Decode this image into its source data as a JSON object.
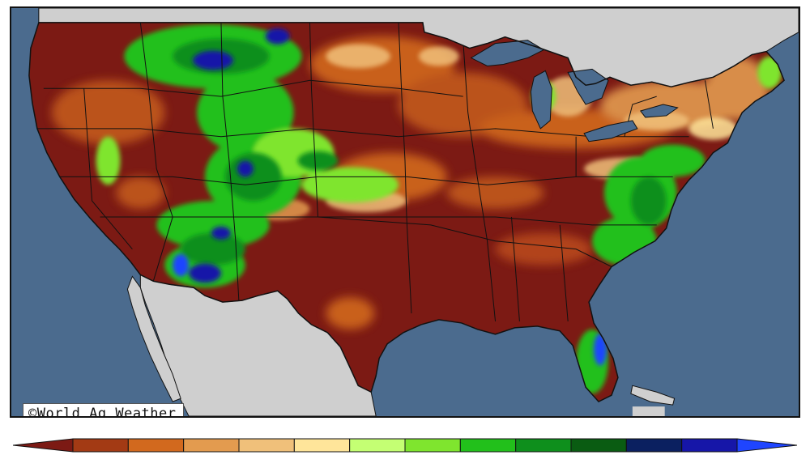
{
  "map": {
    "credit": "©World Ag Weather",
    "colors": {
      "ocean": "#4b6b8e",
      "land_outside": "#cfcfcf",
      "dry": "#7c1a14",
      "borders": "#111111"
    }
  },
  "legend": {
    "colors": [
      "#7c1a14",
      "#a33a14",
      "#d2691e",
      "#e39b4f",
      "#f0c07a",
      "#ffe59a",
      "#c4ff73",
      "#7fe52e",
      "#22c01b",
      "#0e8f1c",
      "#0a5c12",
      "#0b2060",
      "#1616a8",
      "#1f45ff"
    ],
    "tick_labels": []
  }
}
